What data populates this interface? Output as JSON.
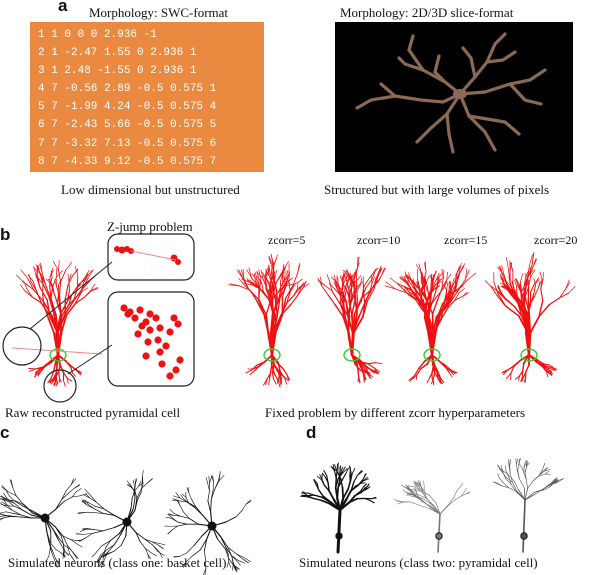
{
  "panel_a": {
    "letter": "a",
    "swc_title": "Morphology: SWC-format",
    "swc_rows": [
      "1 1 0 0 0 2.936 -1",
      "2 1 -2.47 1.55 0 2.936 1",
      "3 1 2.48 -1.55 0 2.936 1",
      "4 7 -0.56 2.89 -0.5 0.575 1",
      "5 7 -1.99 4.24 -0.5 0.575 4",
      "6 7 -2.43 5.66 -0.5 0.575 5",
      "7 7 -3.32 7.13 -0.5 0.575 6",
      "8 7 -4.33 9.12 -0.5 0.575 7"
    ],
    "swc_caption": "Low dimensional but unstructured",
    "slice_title": "Morphology: 2D/3D slice-format",
    "slice_caption": "Structured but with large volumes of pixels",
    "colors": {
      "swc_background": "#ea8a40",
      "slice_background": "#000000",
      "neuron_branch": "#8a6a55"
    }
  },
  "panel_b": {
    "letter": "b",
    "zjump_title": "Z-jump problem",
    "raw_caption": "Raw reconstructed pyramidal cell",
    "zcorr_labels": [
      "zcorr=5",
      "zcorr=10",
      "zcorr=15",
      "zcorr=20"
    ],
    "fixed_caption": "Fixed problem by different zcorr hyperparameters",
    "colors": {
      "neuron": "#ee1111",
      "soma_outline": "#33cc33"
    }
  },
  "panel_c": {
    "letter": "c",
    "caption": "Simulated neurons (class one: basket cell)"
  },
  "panel_d": {
    "letter": "d",
    "caption": "Simulated neurons (class two: pyramidal cell)"
  }
}
